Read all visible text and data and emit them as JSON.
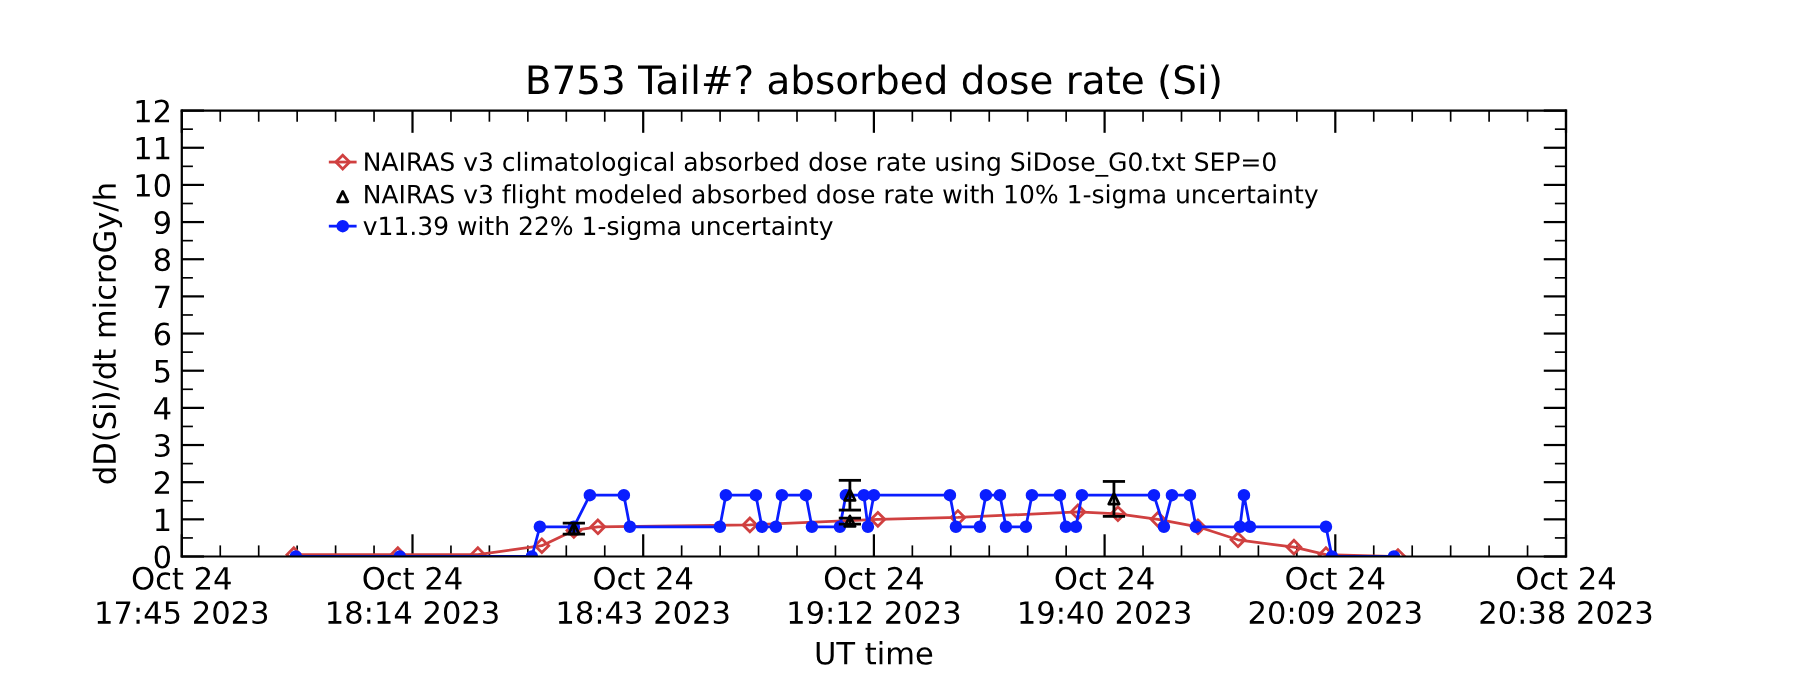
{
  "chart_data": {
    "type": "line",
    "title": "B753 Tail#? absorbed dose rate (Si)",
    "xlabel": "UT time",
    "ylabel": "dD(Si)/dt microGy/h",
    "xlim": [
      "2023-10-24T17:45",
      "2023-10-24T20:38"
    ],
    "xticks": [
      {
        "value": "2023-10-24T17:45",
        "label": "Oct 24\n17:45 2023"
      },
      {
        "value": "2023-10-24T18:13:50",
        "label": "Oct 24\n18:14 2023"
      },
      {
        "value": "2023-10-24T18:42:40",
        "label": "Oct 24\n18:43 2023"
      },
      {
        "value": "2023-10-24T19:11:30",
        "label": "Oct 24\n19:12 2023"
      },
      {
        "value": "2023-10-24T19:40:20",
        "label": "Oct 24\n19:40 2023"
      },
      {
        "value": "2023-10-24T20:09:10",
        "label": "Oct 24\n20:09 2023"
      },
      {
        "value": "2023-10-24T20:38",
        "label": "Oct 24\n20:38 2023"
      }
    ],
    "ylim": [
      0,
      12
    ],
    "yticks": [
      0,
      1,
      2,
      3,
      4,
      5,
      6,
      7,
      8,
      9,
      10,
      11,
      12
    ],
    "grid": false,
    "legend": "top left",
    "series": [
      {
        "name": "NAIRAS v3 climatological absorbed dose rate using SiDose_G0.txt SEP=0",
        "marker": "diamond",
        "color": "#d04040",
        "x": [
          "2023-10-24T17:59",
          "2023-10-24T18:12",
          "2023-10-24T18:22",
          "2023-10-24T18:30",
          "2023-10-24T18:34",
          "2023-10-24T18:37",
          "2023-10-24T18:56",
          "2023-10-24T19:12",
          "2023-10-24T19:22",
          "2023-10-24T19:37",
          "2023-10-24T19:42",
          "2023-10-24T19:47",
          "2023-10-24T19:52",
          "2023-10-24T19:57",
          "2023-10-24T20:04",
          "2023-10-24T20:08",
          "2023-10-24T20:17"
        ],
        "values": [
          0.05,
          0.05,
          0.05,
          0.29,
          0.7,
          0.8,
          0.85,
          1.0,
          1.05,
          1.2,
          1.15,
          1.0,
          0.8,
          0.45,
          0.25,
          0.05,
          0
        ]
      },
      {
        "name": "NAIRAS v3 flight modeled absorbed dose rate with 10% 1-sigma uncertainty",
        "type": "scatter",
        "marker": "triangle",
        "color": "#000000",
        "x": [
          "2023-10-24T18:34",
          "2023-10-24T19:08:30",
          "2023-10-24T19:08:30",
          "2023-10-24T19:41:30"
        ],
        "values": [
          0.75,
          1.65,
          0.95,
          1.55
        ],
        "errors": [
          0.15,
          0.4,
          0.08,
          0.47
        ]
      },
      {
        "name": "v11.39 with 22% 1-sigma uncertainty",
        "marker": "circle",
        "color": "#0a1eff",
        "x": [
          "2023-10-24T17:59:15",
          "2023-10-24T18:12:15",
          "2023-10-24T18:28:45",
          "2023-10-24T18:29:45",
          "2023-10-24T18:34",
          "2023-10-24T18:36",
          "2023-10-24T18:40:15",
          "2023-10-24T18:41",
          "2023-10-24T18:52:15",
          "2023-10-24T18:53",
          "2023-10-24T18:56:45",
          "2023-10-24T18:57:30",
          "2023-10-24T18:59:15",
          "2023-10-24T19:00",
          "2023-10-24T19:03",
          "2023-10-24T19:03:45",
          "2023-10-24T19:07:15",
          "2023-10-24T19:08",
          "2023-10-24T19:10:15",
          "2023-10-24T19:10:45",
          "2023-10-24T19:11:30",
          "2023-10-24T19:21",
          "2023-10-24T19:21:45",
          "2023-10-24T19:24:45",
          "2023-10-24T19:25:30",
          "2023-10-24T19:27:15",
          "2023-10-24T19:28",
          "2023-10-24T19:30:30",
          "2023-10-24T19:31:15",
          "2023-10-24T19:34:45",
          "2023-10-24T19:35:30",
          "2023-10-24T19:36:45",
          "2023-10-24T19:37:30",
          "2023-10-24T19:46:30",
          "2023-10-24T19:47:45",
          "2023-10-24T19:48:45",
          "2023-10-24T19:51",
          "2023-10-24T19:51:45",
          "2023-10-24T19:57:15",
          "2023-10-24T19:57:45",
          "2023-10-24T19:58:30",
          "2023-10-24T20:08",
          "2023-10-24T20:08:45",
          "2023-10-24T20:16:30"
        ],
        "values": [
          0,
          0,
          0,
          0.8,
          0.8,
          1.65,
          1.65,
          0.8,
          0.8,
          1.65,
          1.65,
          0.8,
          0.8,
          1.65,
          1.65,
          0.8,
          0.8,
          1.65,
          1.65,
          0.8,
          1.65,
          1.65,
          0.8,
          0.8,
          1.65,
          1.65,
          0.8,
          0.8,
          1.65,
          1.65,
          0.8,
          0.8,
          1.65,
          1.65,
          0.8,
          1.65,
          1.65,
          0.8,
          0.8,
          1.65,
          0.8,
          0.8,
          0,
          0
        ]
      }
    ]
  }
}
